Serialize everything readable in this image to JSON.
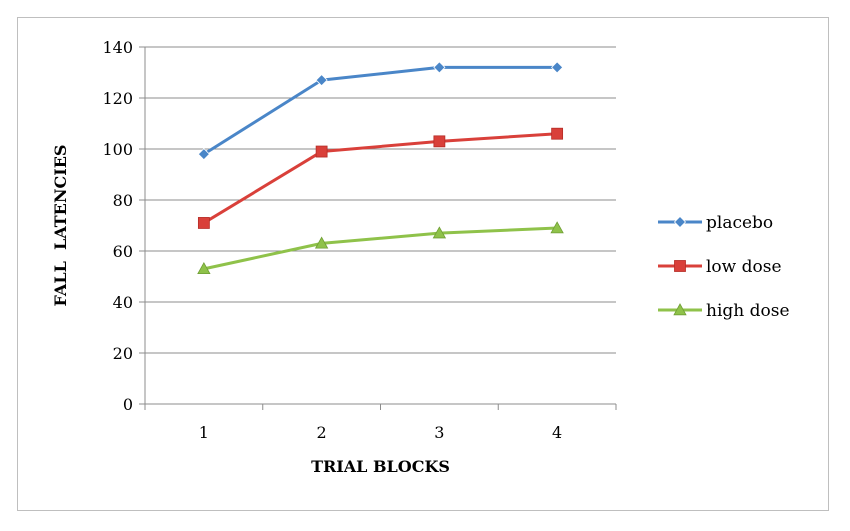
{
  "chart_data": {
    "type": "line",
    "categories": [
      "1",
      "2",
      "3",
      "4"
    ],
    "series": [
      {
        "name": "placebo",
        "values": [
          98,
          127,
          132,
          132
        ],
        "color": "#4a86c8",
        "marker": "diamond"
      },
      {
        "name": "low dose",
        "values": [
          71,
          99,
          103,
          106
        ],
        "color": "#d9403a",
        "marker": "square"
      },
      {
        "name": "high dose",
        "values": [
          53,
          63,
          67,
          69
        ],
        "color": "#8fc24a",
        "marker": "triangle"
      }
    ],
    "xlabel": "TRIAL BLOCKS",
    "ylabel": "FALL  LATENCIES",
    "ylim": [
      0,
      140
    ],
    "yticks": [
      0,
      20,
      40,
      60,
      80,
      100,
      120,
      140
    ],
    "grid": true,
    "legend_position": "right"
  }
}
